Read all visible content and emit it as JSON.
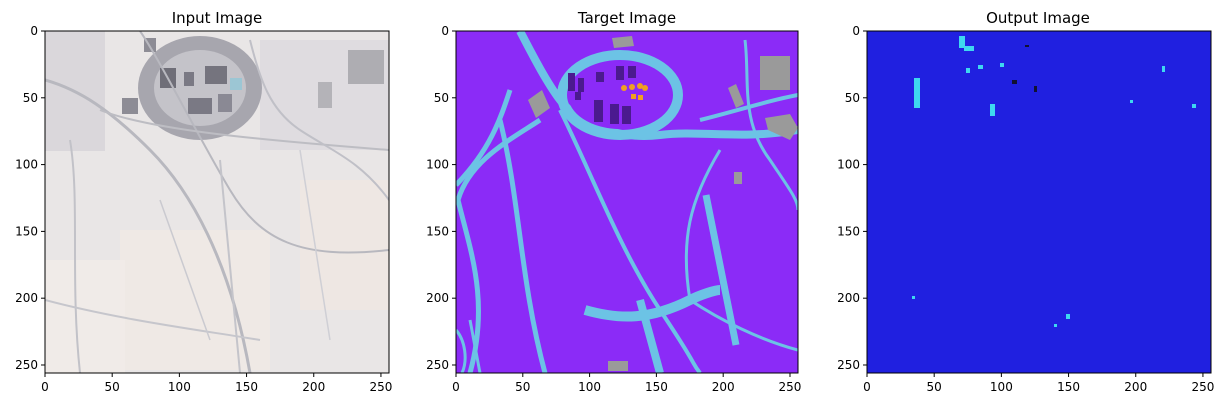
{
  "chart_data": [
    {
      "type": "heatmap",
      "title": "Input Image",
      "content": "satellite RGB image",
      "xlim": [
        0,
        256
      ],
      "ylim": [
        256,
        0
      ],
      "x_ticks": [
        0,
        50,
        100,
        150,
        200,
        250
      ],
      "y_ticks": [
        0,
        50,
        100,
        150,
        200,
        250
      ],
      "colors": {
        "background": "#e9e6e6",
        "roads": "#b8b8bf",
        "building": "#8c8c96"
      }
    },
    {
      "type": "heatmap",
      "title": "Target Image",
      "content": "segmentation mask",
      "xlim": [
        0,
        256
      ],
      "ylim": [
        256,
        0
      ],
      "x_ticks": [
        0,
        50,
        100,
        150,
        200,
        250
      ],
      "y_ticks": [
        0,
        50,
        100,
        150,
        200,
        250
      ],
      "colors": {
        "background": "#8b2bf7",
        "roads": "#6cc3e5",
        "gray": "#9a9a9a",
        "dark": "#4b1a8f",
        "orange": "#f0a020"
      }
    },
    {
      "type": "heatmap",
      "title": "Output Image",
      "content": "predicted mask",
      "xlim": [
        0,
        256
      ],
      "ylim": [
        256,
        0
      ],
      "x_ticks": [
        0,
        50,
        100,
        150,
        200,
        250
      ],
      "y_ticks": [
        0,
        50,
        100,
        150,
        200,
        250
      ],
      "colors": {
        "background": "#2020e0",
        "spots": "#3ed8f0",
        "dark": "#111133"
      }
    }
  ]
}
